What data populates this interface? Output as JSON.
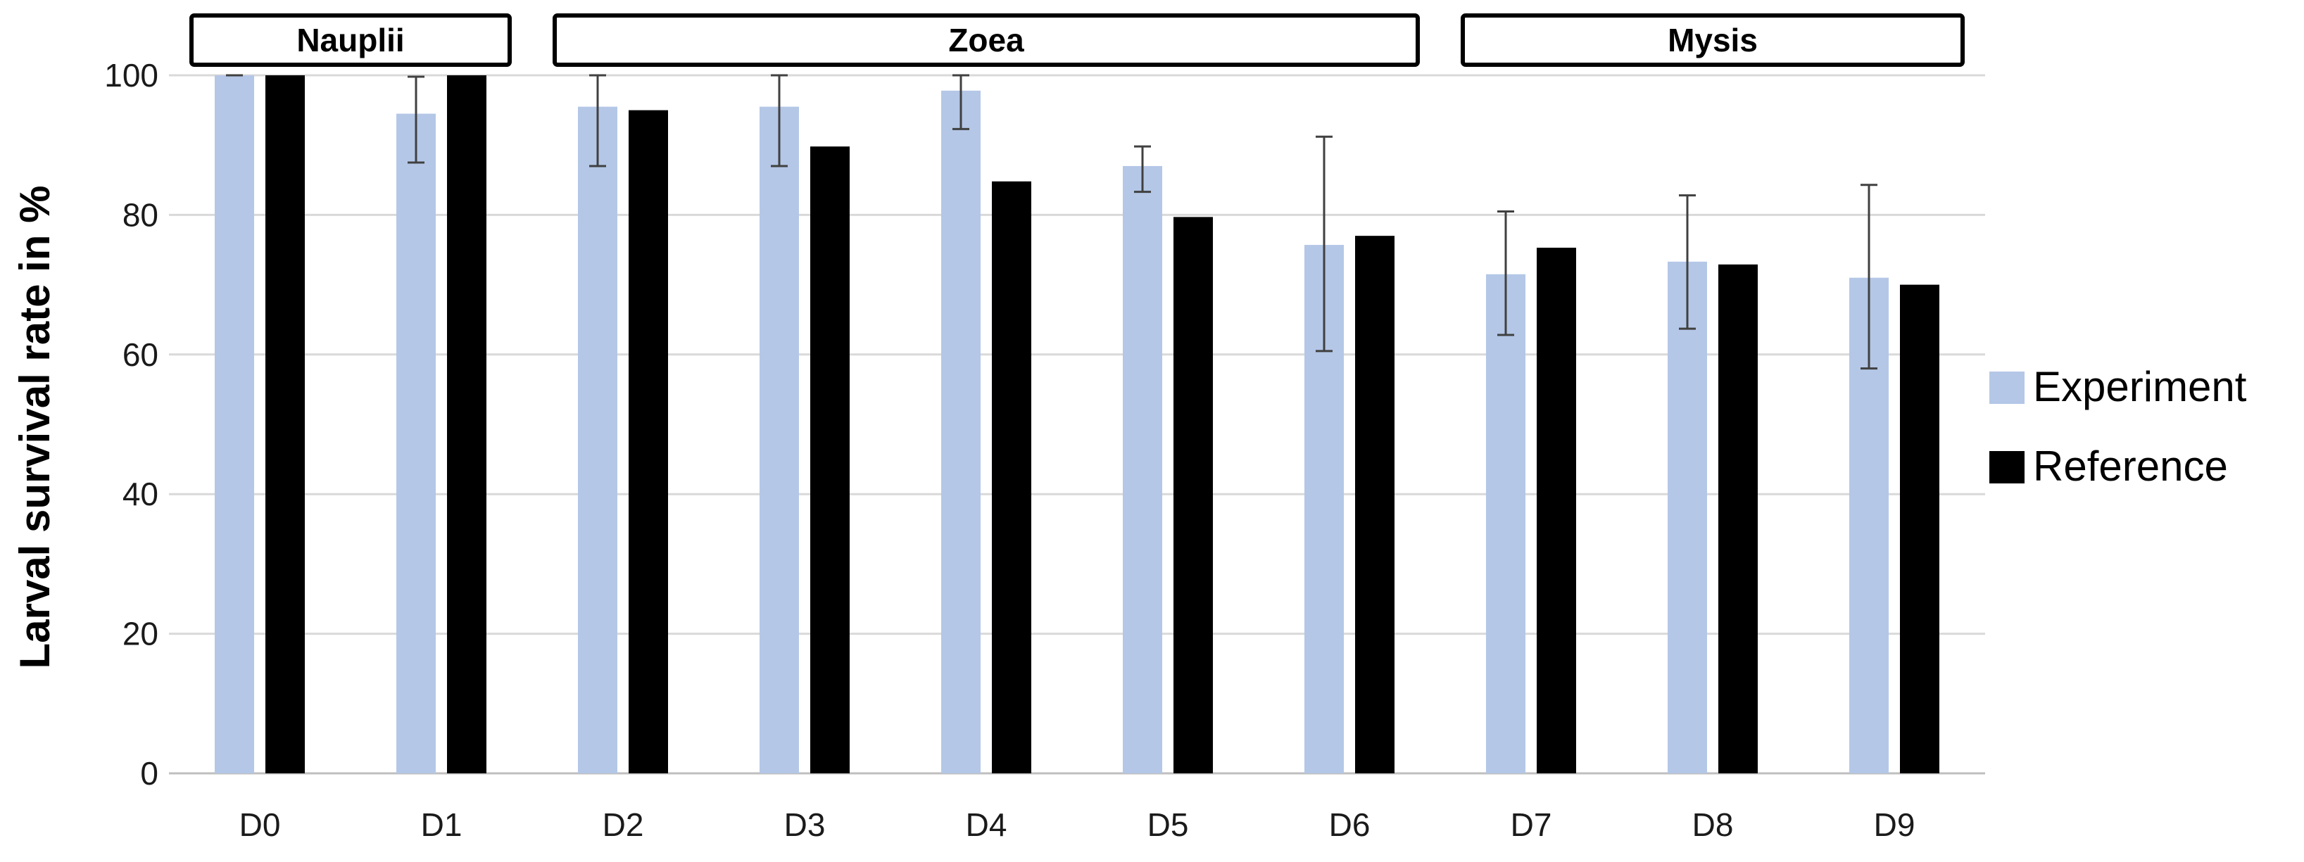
{
  "chart_data": {
    "type": "bar",
    "title": "",
    "xlabel": "",
    "ylabel": "Larval survival rate in %",
    "ylim": [
      0,
      100
    ],
    "yticks": [
      "0",
      "20",
      "40",
      "60",
      "80",
      "100"
    ],
    "categories": [
      "D0",
      "D1",
      "D2",
      "D3",
      "D4",
      "D5",
      "D6",
      "D7",
      "D8",
      "D9"
    ],
    "grid": true,
    "legend_position": "right",
    "series": [
      {
        "name": "Experiment",
        "color": "#b4c7e7",
        "values": [
          100,
          94.5,
          95.5,
          95.5,
          97.8,
          87,
          75.7,
          71.5,
          73.3,
          71
        ],
        "error_low": [
          100,
          87.5,
          87,
          87,
          92.3,
          83.3,
          60.5,
          62.8,
          63.7,
          58
        ],
        "error_high": [
          100,
          99.8,
          100,
          100,
          100,
          89.8,
          91.2,
          80.5,
          82.8,
          84.3
        ]
      },
      {
        "name": "Reference",
        "color": "#000000",
        "values": [
          100,
          100,
          95,
          89.8,
          84.8,
          79.7,
          77,
          75.3,
          72.9,
          70
        ]
      }
    ],
    "stages": [
      {
        "label": "Nauplii",
        "from": "D0",
        "to": "D1"
      },
      {
        "label": "Zoea",
        "from": "D2",
        "to": "D6"
      },
      {
        "label": "Mysis",
        "from": "D7",
        "to": "D9"
      }
    ],
    "gridline_color": "#d9d9d9",
    "axis_color": "#bfbfbf"
  }
}
